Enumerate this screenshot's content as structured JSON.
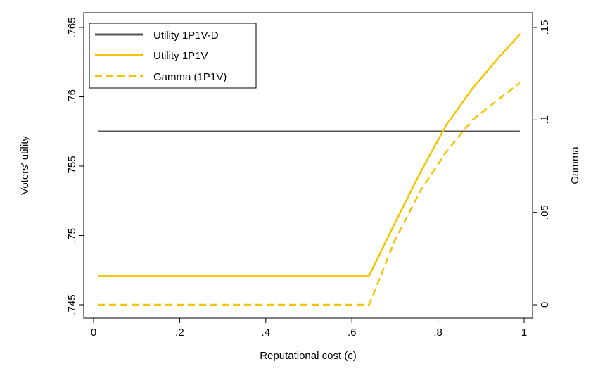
{
  "chart_data": {
    "type": "line",
    "xlabel": "Reputational cost (c)",
    "ylabel_left": "Voters' utility",
    "ylabel_right": "Gamma",
    "xlim": [
      0,
      1
    ],
    "ylim_left": [
      0.745,
      0.765
    ],
    "ylim_right": [
      0,
      0.15
    ],
    "x_ticks": [
      {
        "value": 0,
        "label": "0"
      },
      {
        "value": 0.2,
        "label": ".2"
      },
      {
        "value": 0.4,
        "label": ".4"
      },
      {
        "value": 0.6,
        "label": ".6"
      },
      {
        "value": 0.8,
        "label": ".8"
      },
      {
        "value": 1,
        "label": "1"
      }
    ],
    "y_left_ticks": [
      {
        "value": 0.745,
        "label": ".745"
      },
      {
        "value": 0.75,
        "label": ".75"
      },
      {
        "value": 0.755,
        "label": ".755"
      },
      {
        "value": 0.76,
        "label": ".76"
      },
      {
        "value": 0.765,
        "label": ".765"
      }
    ],
    "y_right_ticks": [
      {
        "value": 0,
        "label": "0"
      },
      {
        "value": 0.05,
        "label": ".05"
      },
      {
        "value": 0.1,
        "label": ".1"
      },
      {
        "value": 0.15,
        "label": ".15"
      }
    ],
    "grid": false,
    "legend_position": "top-left",
    "series": [
      {
        "name": "Utility 1P1V-D",
        "axis": "left",
        "color": "#555555",
        "dash": "solid",
        "points": [
          [
            0.01,
            0.7575
          ],
          [
            0.99,
            0.7575
          ]
        ]
      },
      {
        "name": "Utility 1P1V",
        "axis": "left",
        "color": "#f5c400",
        "dash": "solid",
        "points": [
          [
            0.01,
            0.7471
          ],
          [
            0.64,
            0.7471
          ],
          [
            0.7,
            0.7509
          ],
          [
            0.76,
            0.7546
          ],
          [
            0.82,
            0.758
          ],
          [
            0.88,
            0.7606
          ],
          [
            0.94,
            0.7628
          ],
          [
            0.99,
            0.7645
          ]
        ]
      },
      {
        "name": "Gamma (1P1V)",
        "axis": "right",
        "color": "#f5c400",
        "dash": "dashed",
        "points": [
          [
            0.01,
            0.0
          ],
          [
            0.64,
            0.0
          ],
          [
            0.7,
            0.035
          ],
          [
            0.76,
            0.062
          ],
          [
            0.82,
            0.083
          ],
          [
            0.88,
            0.1
          ],
          [
            0.94,
            0.111
          ],
          [
            0.99,
            0.12
          ]
        ]
      }
    ]
  }
}
